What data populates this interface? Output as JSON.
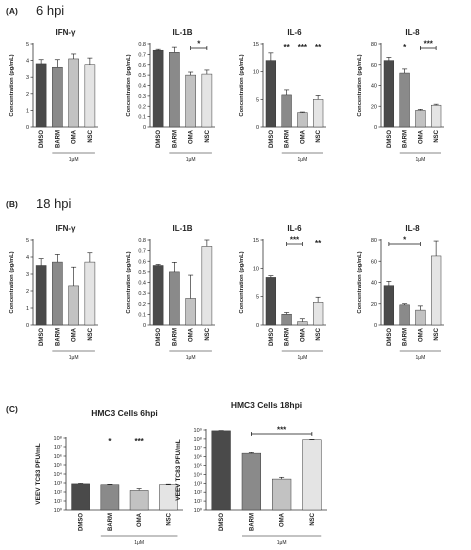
{
  "panels": [
    {
      "label": "(A)",
      "title": "6 hpi"
    },
    {
      "label": "(B)",
      "title": "18 hpi"
    },
    {
      "label": "(C)",
      "title": ""
    }
  ],
  "conc_ylabel": "Concentration (pg/mL)",
  "pfu_ylabel": "VEEV TC83 PFU/mL",
  "dose_label": "1μM",
  "categories": [
    "DMSO",
    "BARM",
    "OMA",
    "NSC"
  ],
  "colors": {
    "DMSO": "#4a4a4a",
    "BARM": "#8a8a8a",
    "OMA": "#c2c2c2",
    "NSC": "#e4e4e4",
    "axis": "#333333",
    "bar_edge": "#3a3a3a"
  },
  "chart_data": [
    {
      "type": "bar",
      "title": "IFN-γ",
      "timepoint": "6 hpi",
      "ylabel": "Concentration (pg/mL)",
      "ylim": [
        0,
        5
      ],
      "yticks": [
        0,
        1,
        2,
        3,
        4,
        5
      ],
      "categories": [
        "DMSO",
        "BARM",
        "OMA",
        "NSC"
      ],
      "values": [
        3.8,
        3.6,
        4.1,
        3.75
      ],
      "errors": [
        0.25,
        0.45,
        0.3,
        0.4
      ],
      "significance": []
    },
    {
      "type": "bar",
      "title": "IL-1B",
      "timepoint": "6 hpi",
      "ylabel": "Concentration (pg/mL)",
      "ylim": [
        0,
        0.8
      ],
      "yticks": [
        0,
        0.1,
        0.2,
        0.3,
        0.4,
        0.5,
        0.6,
        0.7,
        0.8
      ],
      "categories": [
        "DMSO",
        "BARM",
        "OMA",
        "NSC"
      ],
      "values": [
        0.74,
        0.72,
        0.5,
        0.51
      ],
      "errors": [
        0.01,
        0.05,
        0.03,
        0.04
      ],
      "significance": [
        {
          "text": "*",
          "from": "OMA",
          "to": "NSC",
          "bracket": true
        }
      ]
    },
    {
      "type": "bar",
      "title": "IL-6",
      "timepoint": "6 hpi",
      "ylabel": "Concentration (pg/mL)",
      "ylim": [
        0,
        15
      ],
      "yticks": [
        0,
        5,
        10,
        15
      ],
      "categories": [
        "DMSO",
        "BARM",
        "OMA",
        "NSC"
      ],
      "values": [
        12.0,
        5.8,
        2.6,
        5.0
      ],
      "errors": [
        1.4,
        0.9,
        0.1,
        0.7
      ],
      "significance": [
        {
          "text": "**",
          "over": "BARM"
        },
        {
          "text": "***",
          "over": "OMA"
        },
        {
          "text": "**",
          "over": "NSC"
        }
      ]
    },
    {
      "type": "bar",
      "title": "IL-8",
      "timepoint": "6 hpi",
      "ylabel": "Concentration (pg/mL)",
      "ylim": [
        0,
        80
      ],
      "yticks": [
        0,
        20,
        40,
        60,
        80
      ],
      "categories": [
        "DMSO",
        "BARM",
        "OMA",
        "NSC"
      ],
      "values": [
        64,
        52,
        16,
        21
      ],
      "errors": [
        3,
        4,
        1,
        1
      ],
      "significance": [
        {
          "text": "*",
          "over": "BARM"
        },
        {
          "text": "***",
          "from": "OMA",
          "to": "NSC",
          "bracket": true
        }
      ]
    },
    {
      "type": "bar",
      "title": "IFN-γ",
      "timepoint": "18 hpi",
      "ylabel": "Concentration (pg/mL)",
      "ylim": [
        0,
        5
      ],
      "yticks": [
        0,
        1,
        2,
        3,
        4,
        5
      ],
      "categories": [
        "DMSO",
        "BARM",
        "OMA",
        "NSC"
      ],
      "values": [
        3.5,
        3.7,
        2.3,
        3.7
      ],
      "errors": [
        0.4,
        0.45,
        1.1,
        0.55
      ],
      "significance": []
    },
    {
      "type": "bar",
      "title": "IL-1B",
      "timepoint": "18 hpi",
      "ylabel": "Concentration (pg/mL)",
      "ylim": [
        0,
        0.8
      ],
      "yticks": [
        0,
        0.1,
        0.2,
        0.3,
        0.4,
        0.5,
        0.6,
        0.7,
        0.8
      ],
      "categories": [
        "DMSO",
        "BARM",
        "OMA",
        "NSC"
      ],
      "values": [
        0.56,
        0.5,
        0.25,
        0.74
      ],
      "errors": [
        0.01,
        0.09,
        0.22,
        0.06
      ],
      "significance": []
    },
    {
      "type": "bar",
      "title": "IL-6",
      "timepoint": "18 hpi",
      "ylabel": "Concentration (pg/mL)",
      "ylim": [
        0,
        15
      ],
      "yticks": [
        0,
        5,
        10,
        15
      ],
      "categories": [
        "DMSO",
        "BARM",
        "OMA",
        "NSC"
      ],
      "values": [
        8.4,
        1.9,
        0.6,
        4.0
      ],
      "errors": [
        0.3,
        0.3,
        0.5,
        0.9
      ],
      "significance": [
        {
          "text": "***",
          "from": "BARM",
          "to": "OMA",
          "bracket": true
        },
        {
          "text": "**",
          "over": "NSC"
        }
      ]
    },
    {
      "type": "bar",
      "title": "IL-8",
      "timepoint": "18 hpi",
      "ylabel": "Concentration (pg/mL)",
      "ylim": [
        0,
        80
      ],
      "yticks": [
        0,
        20,
        40,
        60,
        80
      ],
      "categories": [
        "DMSO",
        "BARM",
        "OMA",
        "NSC"
      ],
      "values": [
        37,
        19,
        14,
        65
      ],
      "errors": [
        4,
        1,
        4,
        14
      ],
      "significance": [
        {
          "text": "*",
          "from": "DMSO",
          "to": "OMA",
          "bracket": true
        }
      ]
    },
    {
      "type": "bar",
      "title": "HMC3 Cells 6hpi",
      "ylabel": "VEEV TC83 PFU/mL",
      "scale": "log",
      "ylim": [
        1,
        100000000
      ],
      "ytick_labels": [
        "10⁰",
        "10¹",
        "10²",
        "10³",
        "10⁴",
        "10⁵",
        "10⁶",
        "10⁷",
        "10⁸"
      ],
      "categories": [
        "DMSO",
        "BARM",
        "OMA",
        "NSC"
      ],
      "values": [
        800,
        640,
        150,
        640
      ],
      "error_factor": [
        1.1,
        1.1,
        1.6,
        1.15
      ],
      "significance": [
        {
          "text": "*",
          "over": "BARM"
        },
        {
          "text": "***",
          "over": "OMA"
        }
      ]
    },
    {
      "type": "bar",
      "title": "HMC3 Cells 18hpi",
      "ylabel": "VEEV TC83 PFU/mL",
      "scale": "log",
      "ylim": [
        1,
        1000000000
      ],
      "ytick_labels": [
        "10⁰",
        "10¹",
        "10²",
        "10³",
        "10⁴",
        "10⁵",
        "10⁶",
        "10⁷",
        "10⁸",
        "10⁹"
      ],
      "categories": [
        "DMSO",
        "BARM",
        "OMA",
        "NSC"
      ],
      "values": [
        800000000,
        2500000,
        3000,
        80000000
      ],
      "error_factor": [
        1.05,
        1.2,
        1.6,
        1.1
      ],
      "significance": [
        {
          "text": "***",
          "from": "BARM",
          "to": "NSC",
          "bracket": true
        }
      ]
    }
  ]
}
